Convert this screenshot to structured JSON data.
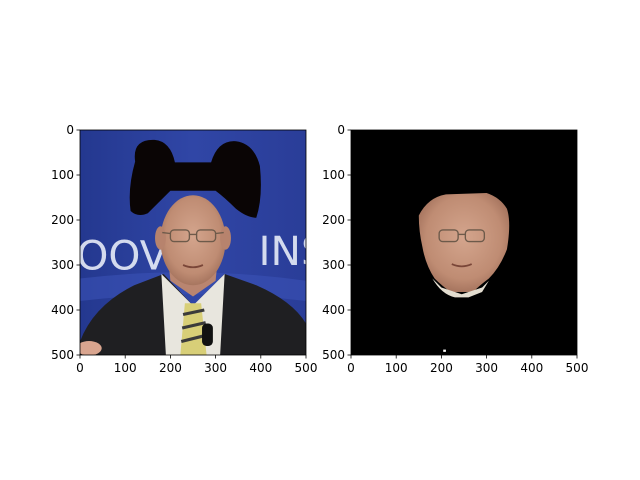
{
  "chart_data": [
    {
      "type": "image",
      "content": "photo of a man in a suit and tie with a black bow-tie shape drawn over his forehead and hair; blue background with white letters 'OOV' and 'INS'",
      "background_text": [
        "OOV",
        "INS"
      ],
      "xlim": [
        0,
        500
      ],
      "ylim": [
        500,
        0
      ],
      "xticks": [
        0,
        100,
        200,
        300,
        400,
        500
      ],
      "yticks": [
        0,
        100,
        200,
        300,
        400,
        500
      ],
      "xtick_labels": [
        "0",
        "100",
        "200",
        "300",
        "400",
        "500"
      ],
      "ytick_labels": [
        "0",
        "100",
        "200",
        "300",
        "400",
        "500"
      ],
      "grid": false,
      "title": "",
      "xlabel": "",
      "ylabel": ""
    },
    {
      "type": "image",
      "content": "same face segmented on a black background",
      "xlim": [
        0,
        500
      ],
      "ylim": [
        500,
        0
      ],
      "xticks": [
        0,
        100,
        200,
        300,
        400,
        500
      ],
      "yticks": [
        0,
        100,
        200,
        300,
        400,
        500
      ],
      "xtick_labels": [
        "0",
        "100",
        "200",
        "300",
        "400",
        "500"
      ],
      "ytick_labels": [
        "0",
        "100",
        "200",
        "300",
        "400",
        "500"
      ],
      "grid": false,
      "title": "",
      "xlabel": "",
      "ylabel": ""
    }
  ],
  "colors": {
    "background_blue": "#2a3f9e",
    "suit": "#1f1f22",
    "shirt": "#e8e6de",
    "skin": "#c89a82",
    "tie_yellow": "#d8cf78",
    "bow": "#0a0505",
    "mask_bg": "#000000"
  }
}
